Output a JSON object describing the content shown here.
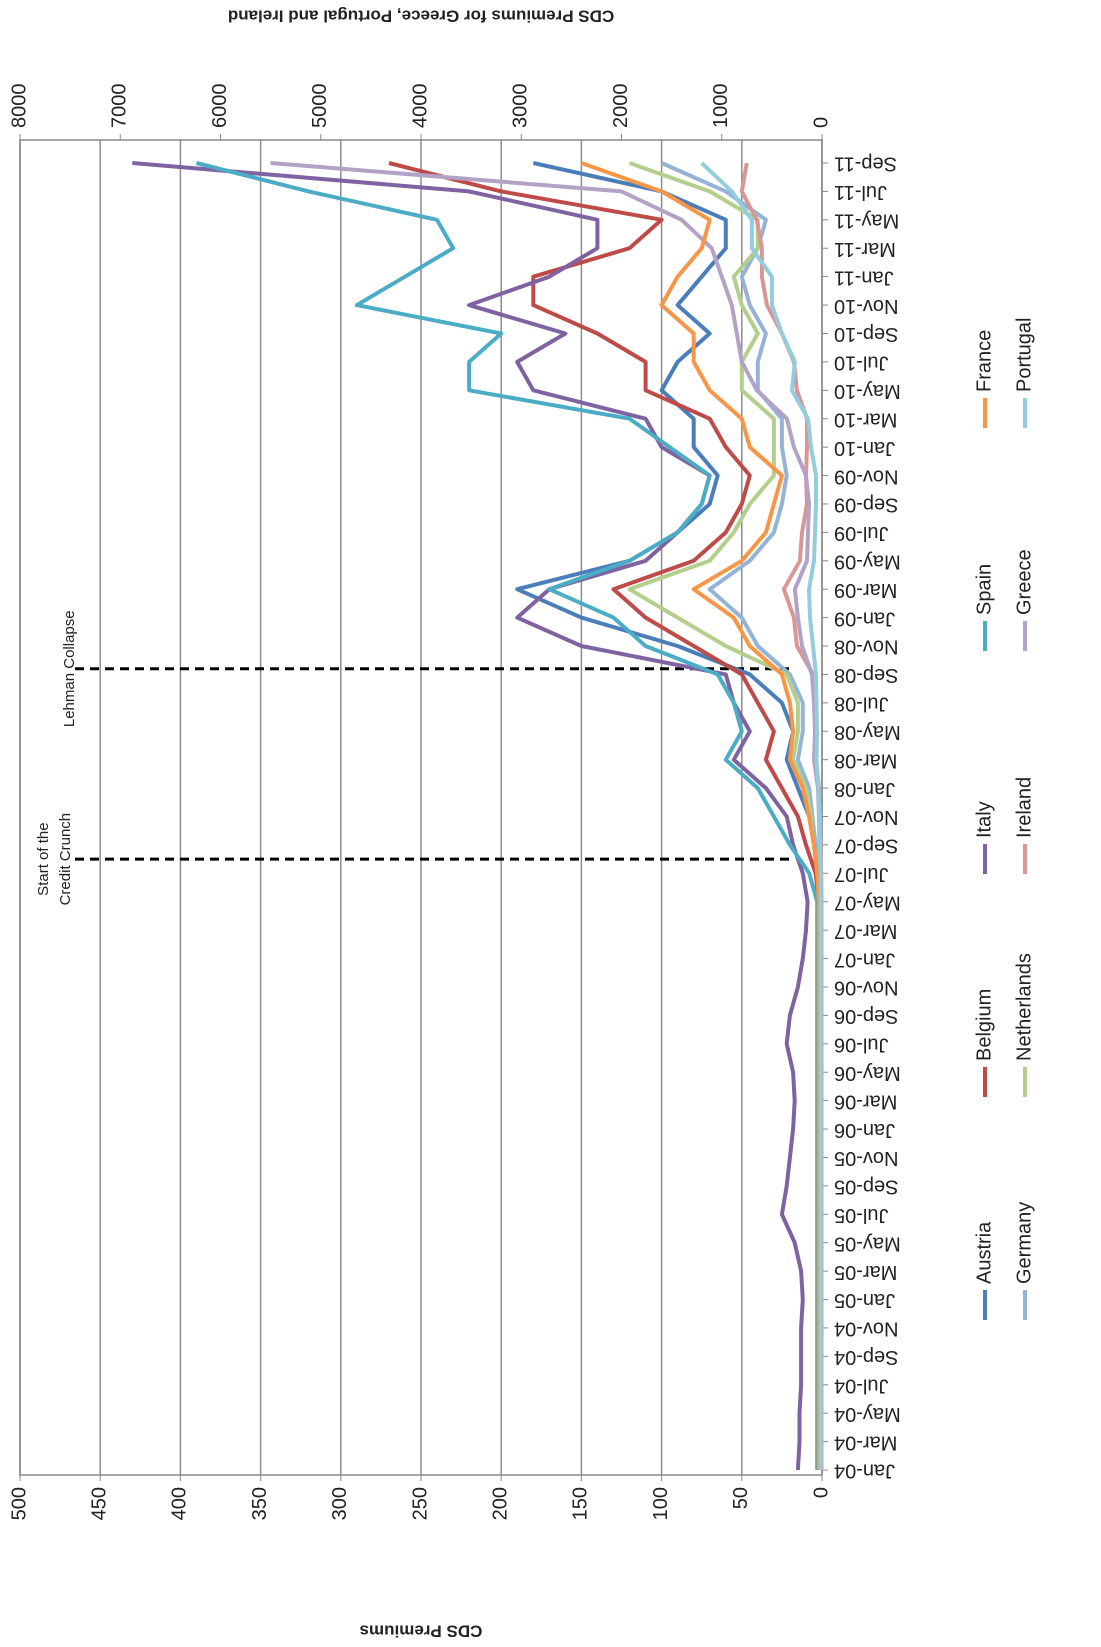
{
  "chart_data": {
    "type": "line",
    "y_label": "CDS Premiums",
    "y2_label": "CDS Premiums for Greece, Portugal and Ireland",
    "categories": [
      "Jan-04",
      "Mar-04",
      "May-04",
      "Jul-04",
      "Sep-04",
      "Nov-04",
      "Jan-05",
      "Mar-05",
      "May-05",
      "Jul-05",
      "Sep-05",
      "Nov-05",
      "Jan-06",
      "Mar-06",
      "May-06",
      "Jul-06",
      "Sep-06",
      "Nov-06",
      "Jan-07",
      "Mar-07",
      "May-07",
      "Jul-07",
      "Sep-07",
      "Nov-07",
      "Jan-08",
      "Mar-08",
      "May-08",
      "Jul-08",
      "Sep-08",
      "Nov-08",
      "Jan-09",
      "Mar-09",
      "May-09",
      "Jul-09",
      "Sep-09",
      "Nov-09",
      "Jan-10",
      "Mar-10",
      "May-10",
      "Jul-10",
      "Sep-10",
      "Nov-10",
      "Jan-11",
      "Mar-11",
      "May-11",
      "Jul-11",
      "Sep-11"
    ],
    "ylim": [
      0,
      500
    ],
    "yticks": [
      0,
      50,
      100,
      150,
      200,
      250,
      300,
      350,
      400,
      450,
      500
    ],
    "y2lim": [
      0,
      8000
    ],
    "y2ticks": [
      0,
      1000,
      2000,
      3000,
      4000,
      5000,
      6000,
      7000,
      8000
    ],
    "grid": true,
    "annotations": [
      {
        "text": [
          "Start of the",
          "Credit Crunch"
        ]
      },
      {
        "text": [
          "Lehman Collapse"
        ]
      }
    ],
    "series": [
      {
        "name": "Austria",
        "color": "#4a7ebb",
        "values": [
          2,
          2,
          2,
          2,
          2,
          2,
          2,
          2,
          2,
          2,
          2,
          2,
          2,
          2,
          2,
          2,
          2,
          2,
          2,
          2,
          2,
          3,
          5,
          8,
          15,
          22,
          18,
          25,
          45,
          90,
          150,
          190,
          120,
          90,
          70,
          65,
          80,
          80,
          100,
          90,
          70,
          90,
          75,
          60,
          60,
          100,
          180
        ]
      },
      {
        "name": "Germany",
        "color": "#95b3d7",
        "values": [
          1.5,
          1.5,
          1.5,
          1.5,
          1.5,
          1.5,
          1.5,
          1.5,
          1.5,
          1.5,
          1.5,
          1.5,
          1.5,
          1.5,
          1.5,
          1.5,
          1.5,
          1.5,
          1.5,
          1.5,
          1.5,
          2,
          4,
          6,
          8,
          15,
          12,
          12,
          20,
          40,
          50,
          70,
          45,
          30,
          25,
          22,
          25,
          25,
          40,
          40,
          35,
          45,
          50,
          40,
          35,
          60,
          100
        ]
      },
      {
        "name": "Belgium",
        "color": "#be4b48",
        "values": [
          2,
          2,
          2,
          2,
          2,
          2,
          2,
          2,
          2,
          2,
          2,
          2,
          2,
          2,
          2,
          2,
          2,
          2,
          2,
          2,
          2,
          4,
          10,
          15,
          25,
          35,
          30,
          40,
          50,
          80,
          110,
          130,
          80,
          60,
          50,
          45,
          60,
          70,
          110,
          110,
          140,
          180,
          180,
          120,
          100,
          200,
          270
        ]
      },
      {
        "name": "Netherlands",
        "color": "#b3cf8b",
        "values": [
          1.5,
          1.5,
          1.5,
          1.5,
          1.5,
          1.5,
          1.5,
          1.5,
          1.5,
          1.5,
          1.5,
          1.5,
          1.5,
          1.5,
          1.5,
          1.5,
          1.5,
          1.5,
          1.5,
          1.5,
          1.5,
          2,
          5,
          7,
          10,
          18,
          15,
          15,
          22,
          60,
          90,
          120,
          70,
          55,
          45,
          30,
          30,
          30,
          50,
          50,
          40,
          50,
          55,
          40,
          40,
          70,
          120
        ]
      },
      {
        "name": "Italy",
        "color": "#7e62a1",
        "values": [
          15,
          14,
          14,
          13,
          13,
          13,
          12,
          13,
          17,
          25,
          22,
          20,
          18,
          17,
          18,
          22,
          20,
          15,
          12,
          10,
          9,
          12,
          18,
          22,
          35,
          55,
          45,
          55,
          60,
          150,
          190,
          170,
          110,
          90,
          75,
          70,
          100,
          110,
          180,
          190,
          160,
          220,
          170,
          140,
          140,
          220,
          430
        ]
      },
      {
        "name": "Ireland",
        "color": "#d99694",
        "axis": "y2",
        "values": [
          5,
          5,
          5,
          5,
          5,
          5,
          5,
          5,
          5,
          5,
          5,
          5,
          5,
          5,
          5,
          5,
          5,
          5,
          5,
          5,
          5,
          8,
          15,
          20,
          30,
          60,
          50,
          60,
          90,
          250,
          280,
          380,
          220,
          200,
          150,
          160,
          150,
          150,
          250,
          280,
          400,
          550,
          600,
          600,
          650,
          800,
          750
        ]
      },
      {
        "name": "Spain",
        "color": "#4bacc6",
        "values": [
          3,
          3,
          3,
          3,
          3,
          3,
          3,
          3,
          3,
          3,
          3,
          3,
          3,
          3,
          3,
          3,
          3,
          3,
          3,
          3,
          3,
          8,
          20,
          30,
          40,
          60,
          50,
          55,
          65,
          110,
          130,
          170,
          120,
          90,
          75,
          70,
          95,
          120,
          220,
          220,
          200,
          290,
          260,
          230,
          240,
          320,
          390
        ]
      },
      {
        "name": "Greece",
        "color": "#b3a2c7",
        "axis": "y2",
        "values": [
          15,
          15,
          15,
          15,
          15,
          15,
          15,
          15,
          15,
          15,
          15,
          15,
          15,
          15,
          15,
          15,
          15,
          15,
          15,
          15,
          15,
          18,
          25,
          30,
          40,
          80,
          70,
          80,
          100,
          200,
          240,
          270,
          150,
          140,
          130,
          160,
          280,
          350,
          650,
          800,
          850,
          900,
          1000,
          1100,
          1400,
          2000,
          5500
        ]
      },
      {
        "name": "France",
        "color": "#f79646",
        "values": [
          2,
          2,
          2,
          2,
          2,
          2,
          2,
          2,
          2,
          2,
          2,
          2,
          2,
          2,
          2,
          2,
          2,
          2,
          2,
          2,
          2,
          3,
          5,
          8,
          12,
          20,
          18,
          20,
          25,
          45,
          55,
          80,
          50,
          35,
          30,
          25,
          45,
          50,
          70,
          80,
          80,
          100,
          90,
          75,
          70,
          100,
          150
        ]
      },
      {
        "name": "Portugal",
        "color": "#93cddd",
        "axis": "y2",
        "values": [
          12,
          12,
          12,
          12,
          12,
          12,
          12,
          12,
          12,
          12,
          12,
          12,
          12,
          12,
          12,
          12,
          12,
          12,
          12,
          12,
          12,
          14,
          20,
          25,
          35,
          55,
          50,
          55,
          60,
          90,
          120,
          130,
          80,
          70,
          60,
          60,
          110,
          140,
          300,
          270,
          400,
          500,
          500,
          700,
          700,
          900,
          1200
        ]
      }
    ]
  }
}
